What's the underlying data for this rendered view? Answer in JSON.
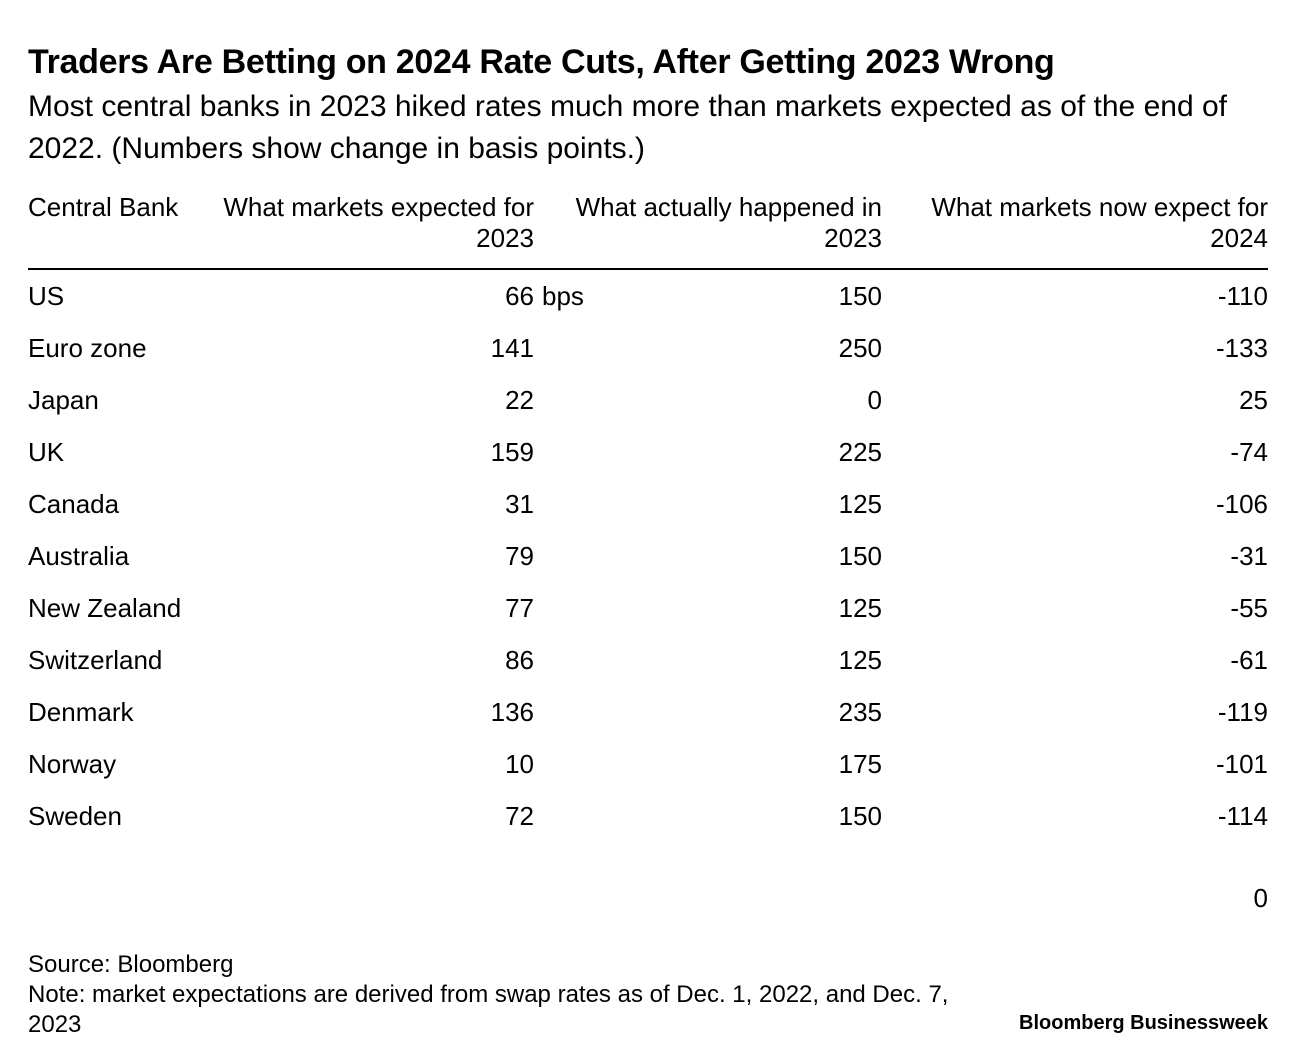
{
  "chart_data": {
    "type": "table",
    "title": "Traders Are Betting on 2024 Rate Cuts, After Getting 2023 Wrong",
    "subtitle": "Most central banks in 2023 hiked rates much more than markets expected as of the end of 2022. (Numbers show change in basis points.)",
    "columns": [
      "Central Bank",
      "What markets expected for 2023",
      "What actually happened in 2023",
      "What markets now expect for 2024"
    ],
    "unit_suffix": "bps",
    "rows": [
      {
        "bank": "US",
        "expected_2023": "66",
        "actual_2023": "150",
        "expected_2024": "-110"
      },
      {
        "bank": "Euro zone",
        "expected_2023": "141",
        "actual_2023": "250",
        "expected_2024": "-133"
      },
      {
        "bank": "Japan",
        "expected_2023": "22",
        "actual_2023": "0",
        "expected_2024": "25"
      },
      {
        "bank": "UK",
        "expected_2023": "159",
        "actual_2023": "225",
        "expected_2024": "-74"
      },
      {
        "bank": "Canada",
        "expected_2023": "31",
        "actual_2023": "125",
        "expected_2024": "-106"
      },
      {
        "bank": "Australia",
        "expected_2023": "79",
        "actual_2023": "150",
        "expected_2024": "-31"
      },
      {
        "bank": "New Zealand",
        "expected_2023": "77",
        "actual_2023": "125",
        "expected_2024": "-55"
      },
      {
        "bank": "Switzerland",
        "expected_2023": "86",
        "actual_2023": "125",
        "expected_2024": "-61"
      },
      {
        "bank": "Denmark",
        "expected_2023": "136",
        "actual_2023": "235",
        "expected_2024": "-119"
      },
      {
        "bank": "Norway",
        "expected_2023": "10",
        "actual_2023": "175",
        "expected_2024": "-101"
      },
      {
        "bank": "Sweden",
        "expected_2023": "72",
        "actual_2023": "150",
        "expected_2024": "-114"
      }
    ],
    "extra_value": "0"
  },
  "footer": {
    "source": "Source: Bloomberg",
    "note": "Note: market expectations are derived from swap rates as of Dec. 1, 2022, and Dec. 7, 2023",
    "brand": "Bloomberg Businessweek"
  }
}
